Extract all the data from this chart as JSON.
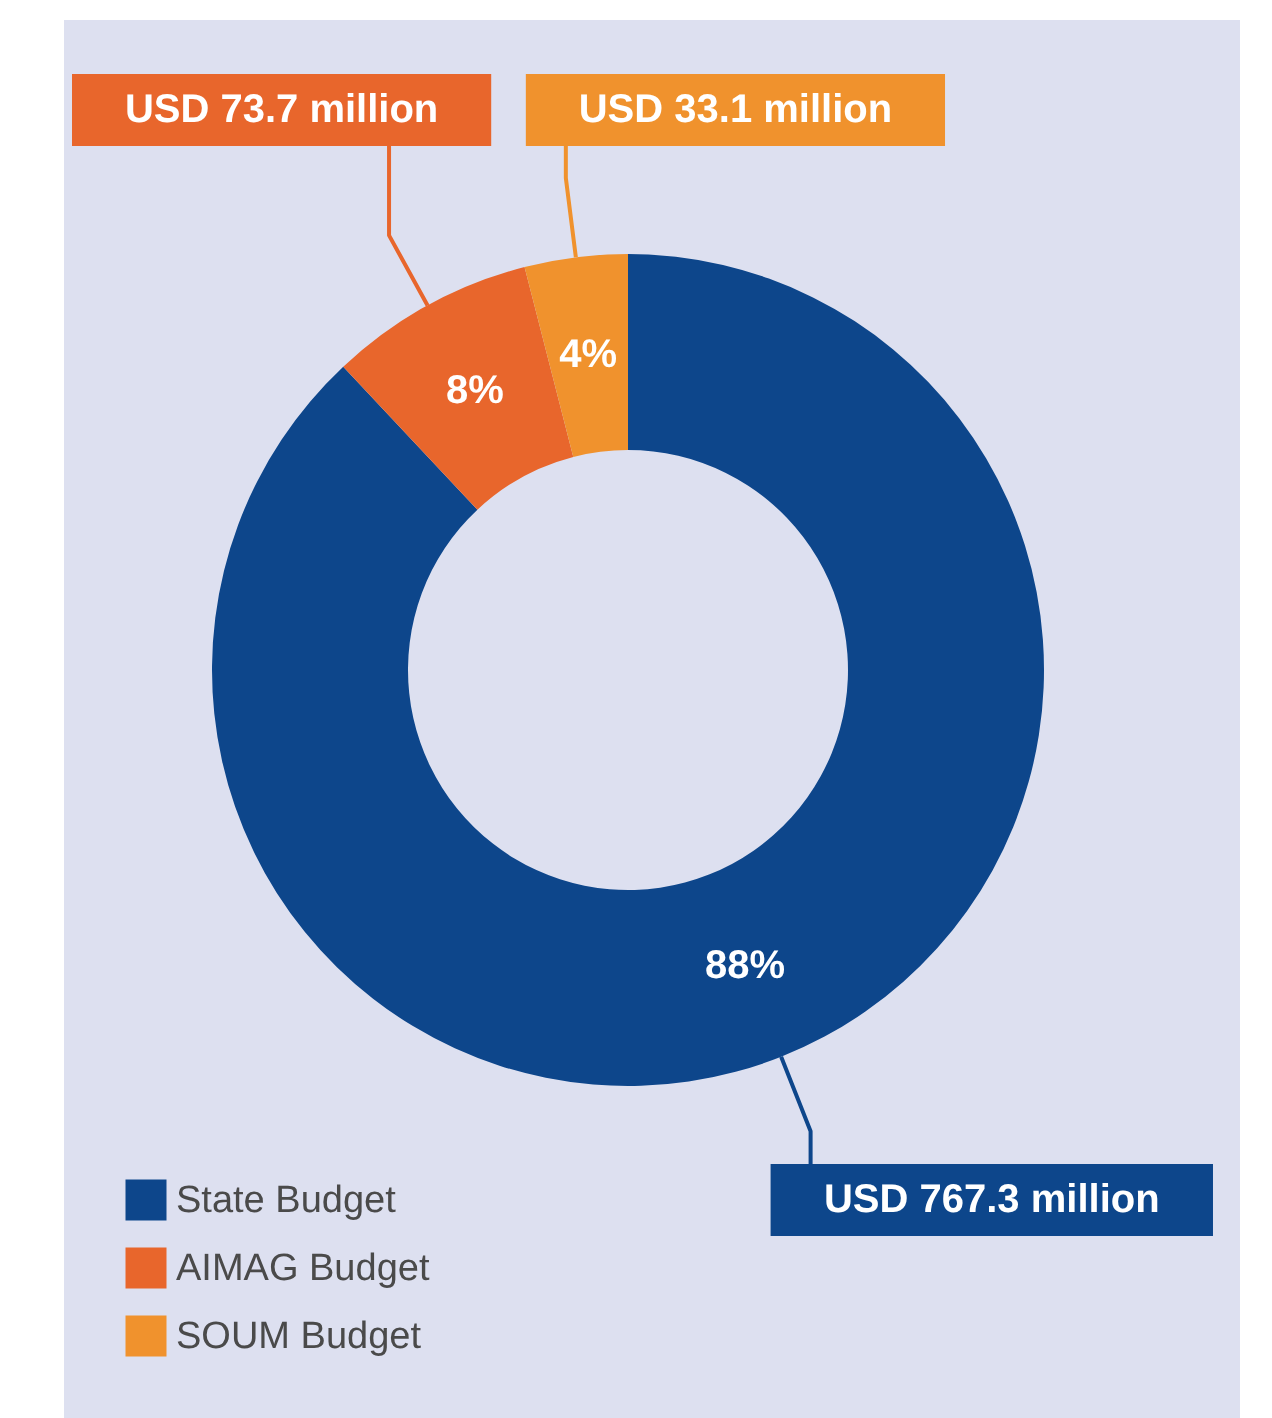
{
  "chart_data": {
    "type": "donut",
    "categories": [
      "State Budget",
      "AIMAG Budget",
      "SOUM Budget"
    ],
    "values": [
      88,
      8,
      4
    ],
    "colors": [
      "#0d468b",
      "#e8662c",
      "#f0922d"
    ],
    "value_labels": [
      "88%",
      "8%",
      "4%"
    ],
    "annotations": [
      {
        "text": "USD 767.3 million",
        "x": "State Budget"
      },
      {
        "text": "USD 73.7 million",
        "x": "AIMAG Budget"
      },
      {
        "text": "USD 33.1 million",
        "x": "SOUM Budget"
      }
    ],
    "legend": "bottom left"
  }
}
